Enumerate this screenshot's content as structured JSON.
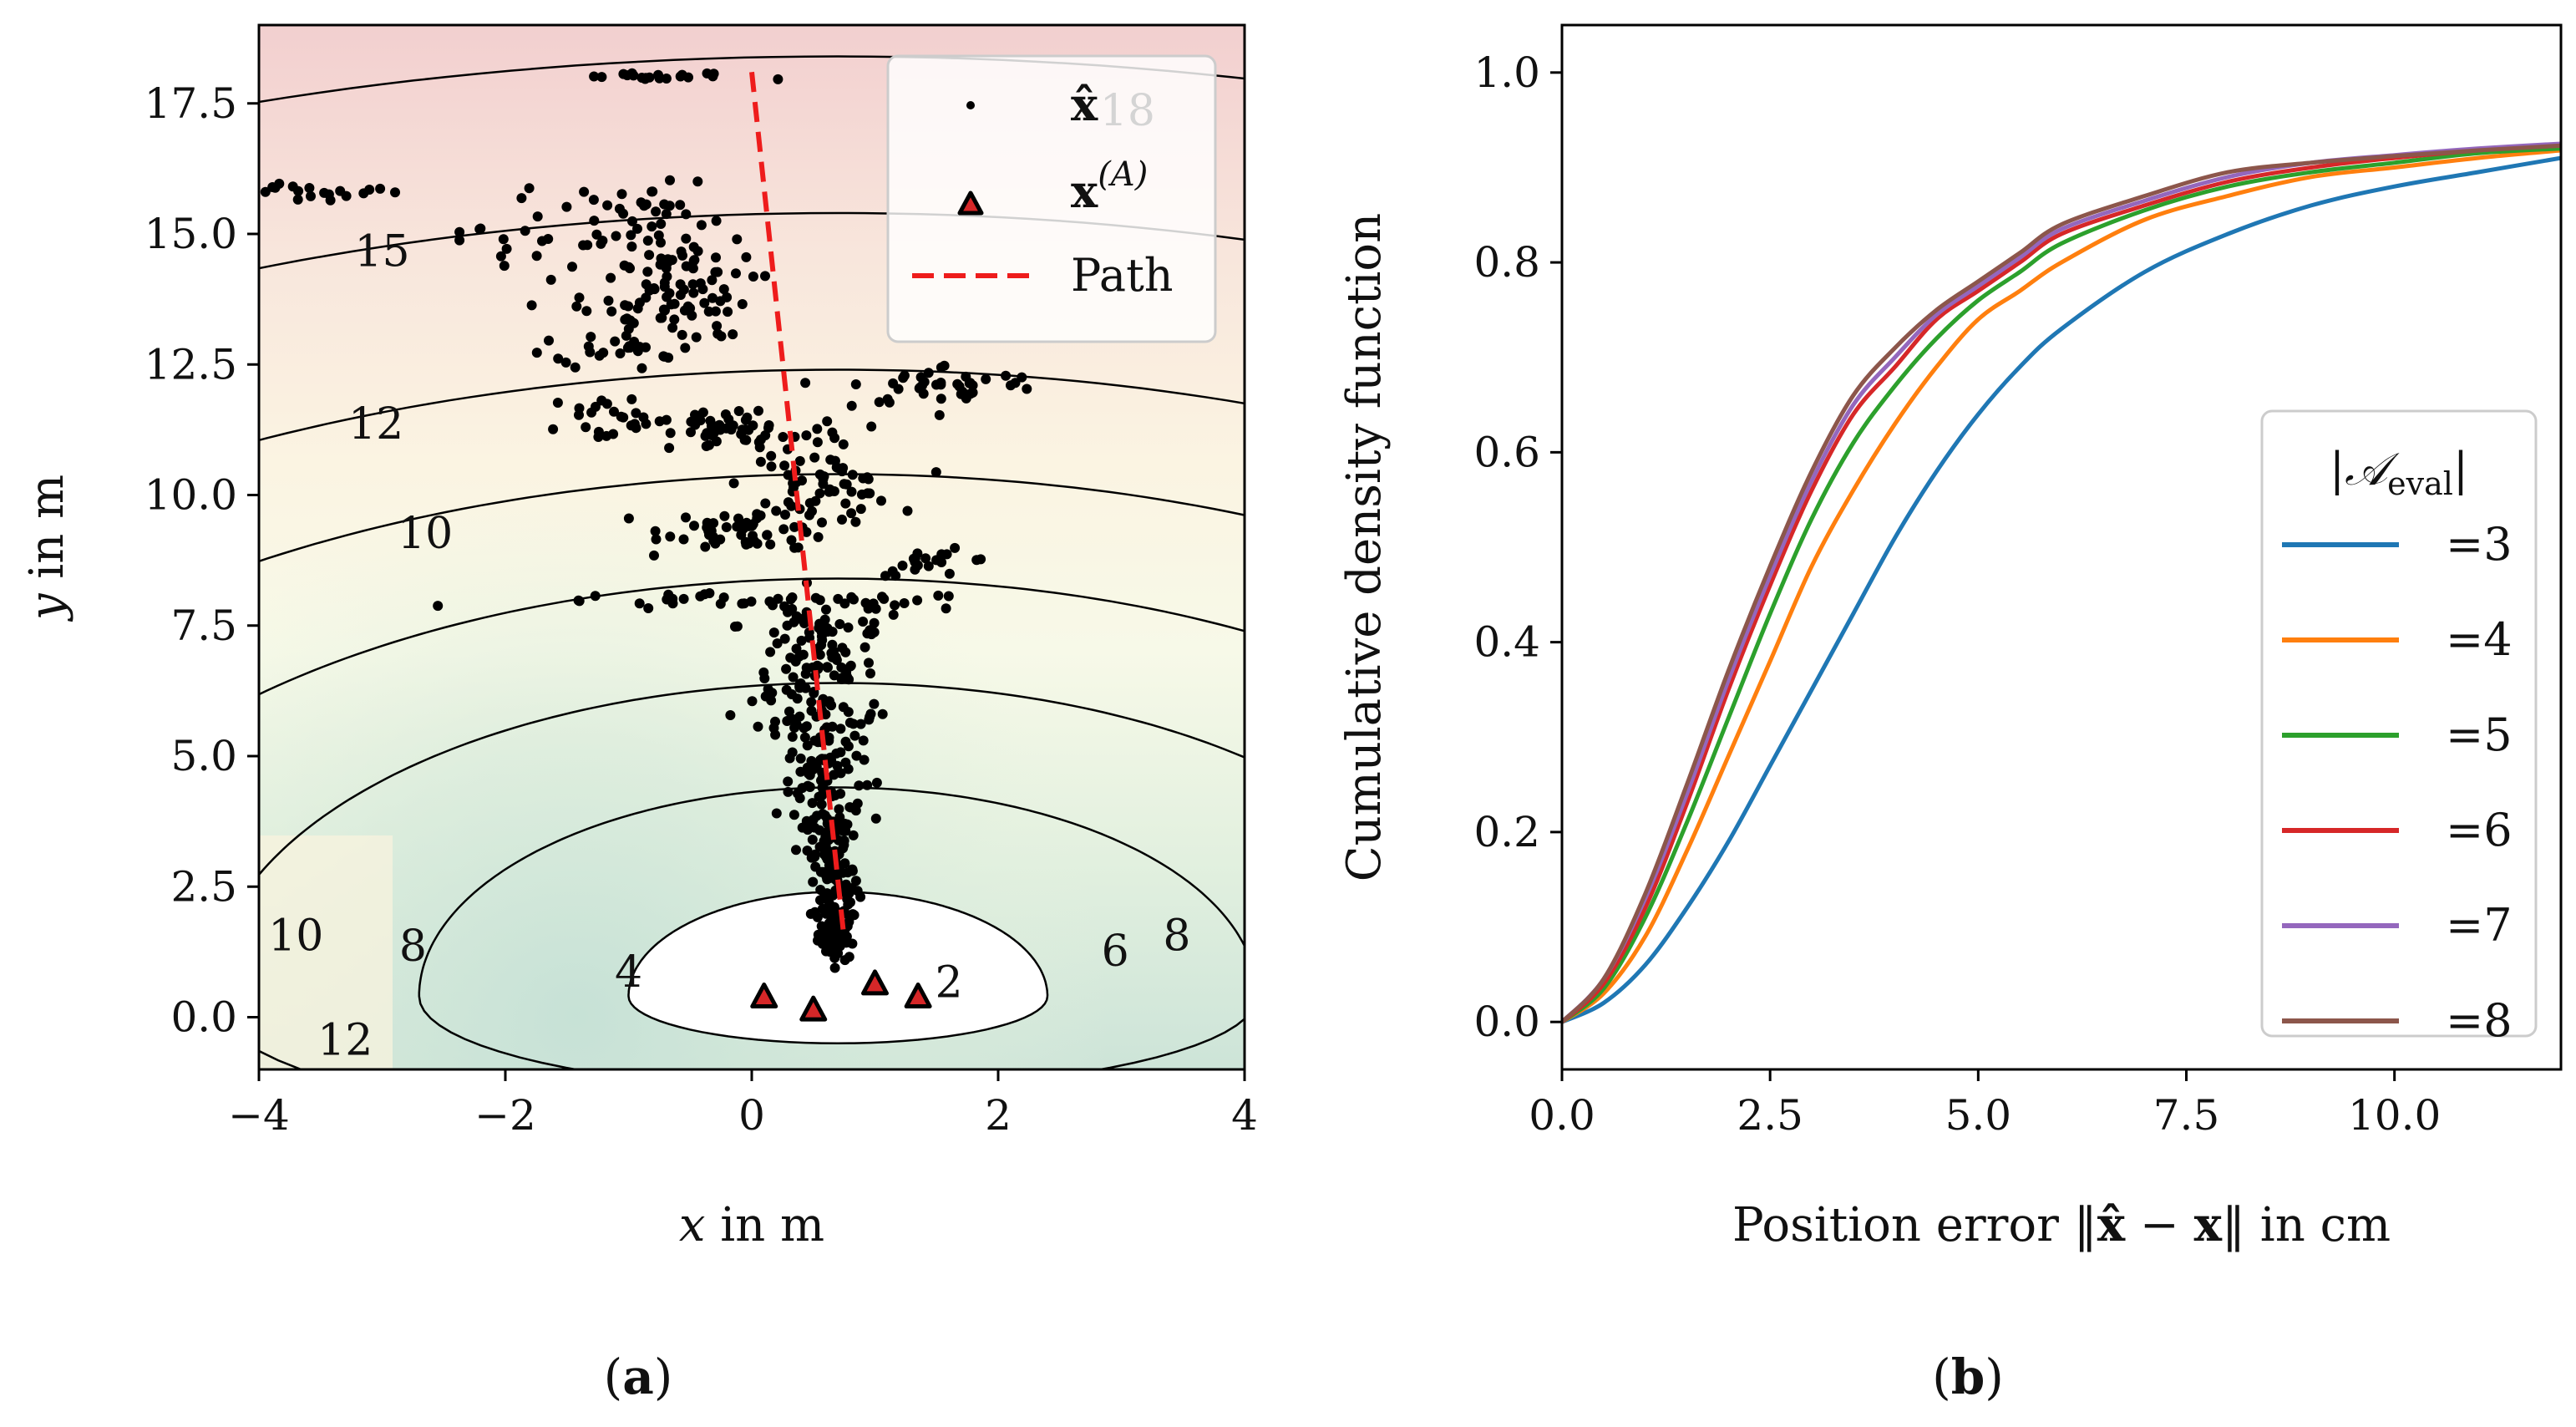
{
  "chart_data": [
    {
      "type": "scatter",
      "panel": "(a)",
      "panel_label_paren_open": "(",
      "panel_label_letter": "a",
      "panel_label_paren_close": ")",
      "xlabel_var": "x",
      "xlabel_unit": " in m",
      "ylabel_var": "y",
      "ylabel_unit": " in m",
      "xlim": [
        -4,
        4
      ],
      "ylim": [
        -1,
        19
      ],
      "xticks": [
        -4,
        -2,
        0,
        2,
        4
      ],
      "xtick_labels": [
        "−4",
        "−2",
        "0",
        "2",
        "4"
      ],
      "yticks": [
        0.0,
        2.5,
        5.0,
        7.5,
        10.0,
        12.5,
        15.0,
        17.5
      ],
      "ytick_labels": [
        "0.0",
        "2.5",
        "5.0",
        "7.5",
        "10.0",
        "12.5",
        "15.0",
        "17.5"
      ],
      "anchors": [
        [
          0.1,
          0.4
        ],
        [
          0.5,
          0.15
        ],
        [
          1.0,
          0.65
        ],
        [
          1.35,
          0.4
        ]
      ],
      "path": [
        [
          0.0,
          18.1
        ],
        [
          0.75,
          1.5
        ]
      ],
      "contour_levels": [
        2,
        4,
        6,
        8,
        10,
        12,
        15,
        18
      ],
      "contour_labels": [
        {
          "text": "18",
          "x": 3.05,
          "y": 17.3
        },
        {
          "text": "15",
          "x": -3.0,
          "y": 14.6
        },
        {
          "text": "12",
          "x": -3.05,
          "y": 11.3
        },
        {
          "text": "10",
          "x": -2.65,
          "y": 9.2
        },
        {
          "text": "10",
          "x": -3.7,
          "y": 1.5
        },
        {
          "text": "8",
          "x": -2.75,
          "y": 1.3
        },
        {
          "text": "12",
          "x": -3.3,
          "y": -0.5
        },
        {
          "text": "4",
          "x": -1.0,
          "y": 0.8
        },
        {
          "text": "2",
          "x": 1.6,
          "y": 0.6
        },
        {
          "text": "6",
          "x": 2.95,
          "y": 1.2
        },
        {
          "text": "8",
          "x": 3.45,
          "y": 1.5
        }
      ],
      "clusters": [
        {
          "x": 0.7,
          "y": 1.6,
          "n": 60,
          "sx": 0.08,
          "sy": 0.25
        },
        {
          "x": 0.67,
          "y": 2.5,
          "n": 60,
          "sx": 0.1,
          "sy": 0.35
        },
        {
          "x": 0.62,
          "y": 3.5,
          "n": 60,
          "sx": 0.12,
          "sy": 0.35
        },
        {
          "x": 0.6,
          "y": 4.6,
          "n": 60,
          "sx": 0.15,
          "sy": 0.4
        },
        {
          "x": 0.55,
          "y": 5.7,
          "n": 60,
          "sx": 0.25,
          "sy": 0.35
        },
        {
          "x": 0.5,
          "y": 6.7,
          "n": 55,
          "sx": 0.25,
          "sy": 0.35
        },
        {
          "x": 0.6,
          "y": 7.5,
          "n": 40,
          "sx": 0.35,
          "sy": 0.25
        },
        {
          "x": 0.1,
          "y": 7.95,
          "n": 40,
          "sx": 1.0,
          "sy": 0.08
        },
        {
          "x": 0.0,
          "y": 9.35,
          "n": 55,
          "sx": 0.35,
          "sy": 0.2
        },
        {
          "x": 1.5,
          "y": 8.7,
          "n": 20,
          "sx": 0.25,
          "sy": 0.12
        },
        {
          "x": 0.55,
          "y": 10.2,
          "n": 55,
          "sx": 0.3,
          "sy": 0.3
        },
        {
          "x": -0.2,
          "y": 11.2,
          "n": 60,
          "sx": 0.5,
          "sy": 0.25
        },
        {
          "x": -1.1,
          "y": 11.5,
          "n": 20,
          "sx": 0.3,
          "sy": 0.25
        },
        {
          "x": 1.6,
          "y": 12.1,
          "n": 40,
          "sx": 0.4,
          "sy": 0.2
        },
        {
          "x": -1.0,
          "y": 13.2,
          "n": 50,
          "sx": 0.3,
          "sy": 0.4
        },
        {
          "x": -0.6,
          "y": 14.0,
          "n": 60,
          "sx": 0.3,
          "sy": 0.5
        },
        {
          "x": -1.4,
          "y": 14.9,
          "n": 40,
          "sx": 0.5,
          "sy": 0.35
        },
        {
          "x": -1.0,
          "y": 15.6,
          "n": 20,
          "sx": 0.4,
          "sy": 0.2
        },
        {
          "x": -3.5,
          "y": 15.8,
          "n": 20,
          "sx": 0.35,
          "sy": 0.1
        },
        {
          "x": -0.7,
          "y": 18.0,
          "n": 20,
          "sx": 0.4,
          "sy": 0.04
        }
      ],
      "legend": [
        {
          "label": "x̂",
          "marker": "dot"
        },
        {
          "label_main": "x",
          "label_sup": "(A)",
          "marker": "triangle"
        },
        {
          "label": "Path",
          "marker": "dashed-line"
        }
      ],
      "colors": {
        "scatter": "#000000",
        "anchor_fill": "#d62728",
        "path": "#ee1c1c",
        "contour": "#000000"
      }
    },
    {
      "type": "line",
      "panel": "(b)",
      "panel_label_paren_open": "(",
      "panel_label_letter": "b",
      "panel_label_paren_close": ")",
      "xlabel_prefix": "Position error ",
      "xlabel_norm_open": "‖",
      "xlabel_x_hat": "x̂",
      "xlabel_minus": " − ",
      "xlabel_x": "x",
      "xlabel_norm_close": "‖",
      "xlabel_suffix": " in cm",
      "ylabel": "Cumulative density function",
      "xlim": [
        0,
        12
      ],
      "ylim": [
        -0.05,
        1.05
      ],
      "xticks": [
        0.0,
        2.5,
        5.0,
        7.5,
        10.0
      ],
      "xtick_labels": [
        "0.0",
        "2.5",
        "5.0",
        "7.5",
        "10.0"
      ],
      "yticks": [
        0.0,
        0.2,
        0.4,
        0.6,
        0.8,
        1.0
      ],
      "ytick_labels": [
        "0.0",
        "0.2",
        "0.4",
        "0.6",
        "0.8",
        "1.0"
      ],
      "legend_title_bar_open": "|",
      "legend_title_script": "𝒜",
      "legend_title_sub": "eval",
      "legend_title_bar_close": "|",
      "series": [
        {
          "name": "=3",
          "color": "#1f77b4",
          "x": [
            0,
            0.5,
            1,
            1.5,
            2,
            2.5,
            3,
            3.5,
            4,
            4.5,
            5,
            5.5,
            6,
            7,
            8,
            9,
            10,
            11,
            12
          ],
          "values": [
            0,
            0.02,
            0.06,
            0.12,
            0.19,
            0.27,
            0.35,
            0.43,
            0.51,
            0.58,
            0.64,
            0.69,
            0.73,
            0.79,
            0.83,
            0.86,
            0.88,
            0.895,
            0.91
          ]
        },
        {
          "name": "=4",
          "color": "#ff7f0e",
          "x": [
            0,
            0.5,
            1,
            1.5,
            2,
            2.5,
            3,
            3.5,
            4,
            4.5,
            5,
            5.5,
            6,
            7,
            8,
            9,
            10,
            11,
            12
          ],
          "values": [
            0,
            0.03,
            0.09,
            0.18,
            0.28,
            0.38,
            0.48,
            0.56,
            0.63,
            0.69,
            0.74,
            0.77,
            0.8,
            0.845,
            0.87,
            0.89,
            0.9,
            0.91,
            0.918
          ]
        },
        {
          "name": "=5",
          "color": "#2ca02c",
          "x": [
            0,
            0.5,
            1,
            1.5,
            2,
            2.5,
            3,
            3.5,
            4,
            4.5,
            5,
            5.5,
            6,
            7,
            8,
            9,
            10,
            11,
            12
          ],
          "values": [
            0,
            0.035,
            0.11,
            0.21,
            0.32,
            0.43,
            0.53,
            0.61,
            0.67,
            0.72,
            0.76,
            0.79,
            0.82,
            0.855,
            0.88,
            0.895,
            0.905,
            0.915,
            0.92
          ]
        },
        {
          "name": "=6",
          "color": "#d62728",
          "x": [
            0,
            0.5,
            1,
            1.5,
            2,
            2.5,
            3,
            3.5,
            4,
            4.5,
            5,
            5.5,
            6,
            7,
            8,
            9,
            10,
            11,
            12
          ],
          "values": [
            0,
            0.04,
            0.12,
            0.23,
            0.35,
            0.46,
            0.56,
            0.64,
            0.69,
            0.74,
            0.77,
            0.8,
            0.83,
            0.86,
            0.885,
            0.9,
            0.91,
            0.918,
            0.923
          ]
        },
        {
          "name": "=7",
          "color": "#9467bd",
          "x": [
            0,
            0.5,
            1,
            1.5,
            2,
            2.5,
            3,
            3.5,
            4,
            4.5,
            5,
            5.5,
            6,
            7,
            8,
            9,
            10,
            11,
            12
          ],
          "values": [
            0,
            0.045,
            0.13,
            0.24,
            0.36,
            0.47,
            0.57,
            0.65,
            0.7,
            0.745,
            0.775,
            0.805,
            0.835,
            0.865,
            0.89,
            0.905,
            0.913,
            0.92,
            0.925
          ]
        },
        {
          "name": "=8",
          "color": "#8c564b",
          "x": [
            0,
            0.5,
            1,
            1.5,
            2,
            2.5,
            3,
            3.5,
            4,
            4.5,
            5,
            5.5,
            6,
            7,
            8,
            9,
            10,
            11,
            12
          ],
          "values": [
            0,
            0.045,
            0.135,
            0.25,
            0.37,
            0.48,
            0.58,
            0.66,
            0.71,
            0.75,
            0.78,
            0.81,
            0.84,
            0.87,
            0.895,
            0.905,
            0.912,
            0.918,
            0.923
          ]
        }
      ]
    }
  ]
}
